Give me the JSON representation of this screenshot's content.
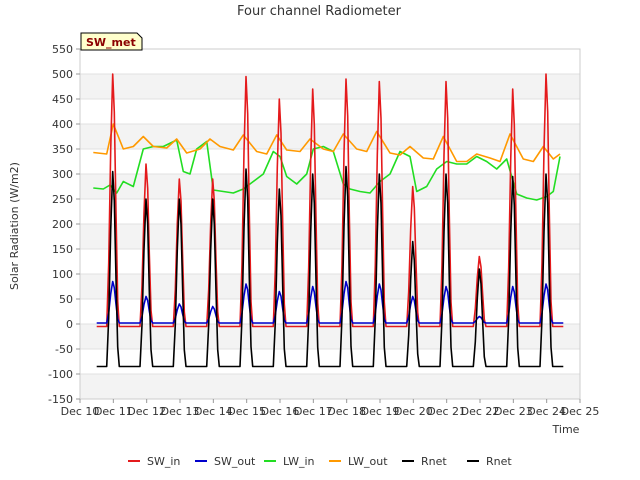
{
  "chart_data": {
    "type": "line",
    "title": "Four channel Radiometer",
    "xlabel": "Time",
    "ylabel": "Solar Radiation (W/m2)",
    "site_label": "SW_met",
    "xlim": [
      10,
      25
    ],
    "ylim": [
      -150,
      550
    ],
    "x_ticks": [
      10,
      11,
      12,
      13,
      14,
      15,
      16,
      17,
      18,
      19,
      20,
      21,
      22,
      23,
      24,
      25
    ],
    "x_tick_labels": [
      "Dec 10",
      "Dec 11",
      "Dec 12",
      "Dec 13",
      "Dec 14",
      "Dec 15",
      "Dec 16",
      "Dec 17",
      "Dec 18",
      "Dec 19",
      "Dec 20",
      "Dec 21",
      "Dec 22",
      "Dec 23",
      "Dec 24",
      "Dec 25"
    ],
    "y_ticks": [
      -150,
      -100,
      -50,
      0,
      50,
      100,
      150,
      200,
      250,
      300,
      350,
      400,
      450,
      500,
      550
    ],
    "y_tick_labels": [
      "-150",
      "-100",
      "-50",
      "0",
      "50",
      "100",
      "150",
      "200",
      "250",
      "300",
      "350",
      "400",
      "450",
      "500",
      "550"
    ],
    "day_start": 10.5,
    "days": 14,
    "series": [
      {
        "name": "SW_in",
        "color": "#e41a1c",
        "kind": "daily_peak",
        "night": -5,
        "peaks": [
          500,
          320,
          290,
          290,
          495,
          450,
          470,
          490,
          485,
          275,
          485,
          135,
          470,
          500
        ]
      },
      {
        "name": "SW_out",
        "color": "#0000cc",
        "kind": "daily_peak",
        "night": 2,
        "peaks": [
          85,
          55,
          40,
          35,
          80,
          65,
          75,
          85,
          80,
          55,
          75,
          15,
          75,
          80
        ]
      },
      {
        "name": "LW_in",
        "color": "#22dd22",
        "kind": "points",
        "x": [
          10.4,
          10.7,
          10.9,
          11.1,
          11.3,
          11.6,
          11.9,
          12.2,
          12.5,
          12.9,
          13.1,
          13.3,
          13.5,
          13.8,
          14.0,
          14.3,
          14.6,
          14.9,
          15.2,
          15.5,
          15.8,
          16.0,
          16.2,
          16.5,
          16.8,
          17.0,
          17.3,
          17.6,
          17.9,
          18.1,
          18.4,
          18.7,
          19.0,
          19.3,
          19.6,
          19.9,
          20.1,
          20.4,
          20.7,
          21.0,
          21.3,
          21.6,
          21.9,
          22.2,
          22.5,
          22.8,
          23.1,
          23.4,
          23.7,
          24.0,
          24.2,
          24.4
        ],
        "y": [
          272,
          270,
          278,
          262,
          285,
          275,
          350,
          355,
          355,
          368,
          305,
          300,
          350,
          365,
          268,
          265,
          262,
          270,
          285,
          300,
          345,
          335,
          295,
          280,
          300,
          350,
          355,
          345,
          280,
          270,
          265,
          262,
          285,
          300,
          345,
          335,
          265,
          275,
          310,
          325,
          320,
          320,
          335,
          325,
          310,
          330,
          260,
          252,
          248,
          255,
          265,
          335
        ]
      },
      {
        "name": "LW_out",
        "color": "#ff9900",
        "kind": "points",
        "x": [
          10.4,
          10.8,
          11.0,
          11.3,
          11.6,
          11.9,
          12.2,
          12.6,
          12.9,
          13.2,
          13.6,
          13.9,
          14.2,
          14.6,
          14.9,
          15.3,
          15.6,
          15.9,
          16.2,
          16.6,
          16.9,
          17.3,
          17.6,
          17.9,
          18.3,
          18.6,
          18.9,
          19.3,
          19.6,
          19.9,
          20.3,
          20.6,
          20.9,
          21.3,
          21.6,
          21.9,
          22.3,
          22.6,
          22.9,
          23.3,
          23.6,
          23.9,
          24.2,
          24.4
        ],
        "y": [
          343,
          340,
          400,
          350,
          355,
          375,
          355,
          352,
          370,
          342,
          350,
          370,
          355,
          348,
          378,
          345,
          340,
          378,
          348,
          345,
          370,
          350,
          345,
          380,
          350,
          345,
          385,
          342,
          338,
          355,
          332,
          330,
          375,
          325,
          325,
          340,
          332,
          325,
          380,
          330,
          325,
          355,
          330,
          340
        ]
      },
      {
        "name": "Rnet",
        "color": "#000000",
        "kind": "daily_peak",
        "night": -85,
        "peaks": [
          305,
          250,
          250,
          250,
          310,
          270,
          300,
          315,
          300,
          165,
          300,
          110,
          295,
          300
        ]
      },
      {
        "name": "Rnet",
        "color": "#000000",
        "kind": "legend_only"
      }
    ]
  }
}
